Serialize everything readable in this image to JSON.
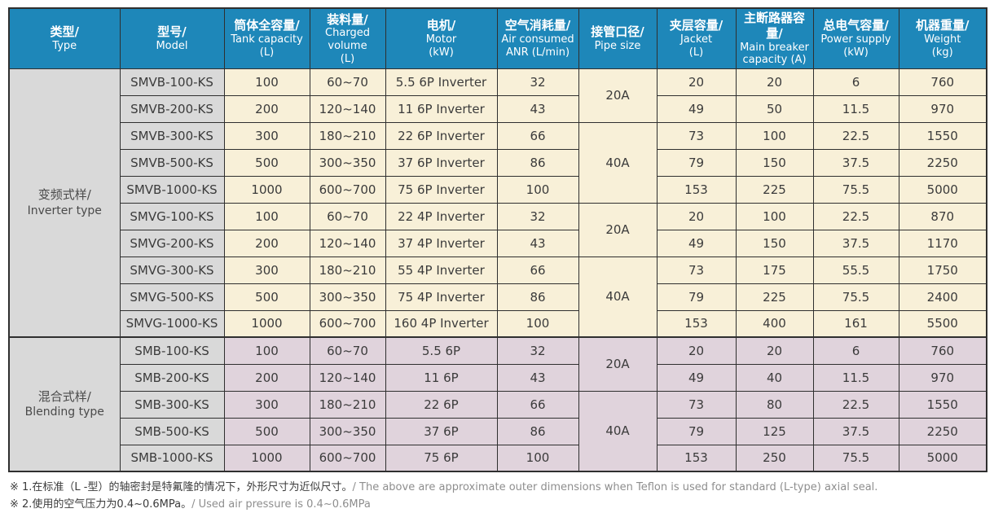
{
  "table": {
    "columns": [
      {
        "key": "type",
        "zh": "类型/",
        "en": "Type"
      },
      {
        "key": "model",
        "zh": "型号/",
        "en": "Model"
      },
      {
        "key": "tank",
        "zh": "筒体全容量/",
        "en": "Tank capacity",
        "unit": "(L)"
      },
      {
        "key": "charged",
        "zh": "装料量/",
        "en": "Charged volume",
        "unit": "(L)"
      },
      {
        "key": "motor",
        "zh": "电机/",
        "en": "Motor",
        "unit": "(kW)"
      },
      {
        "key": "air",
        "zh": "空气消耗量/",
        "en": "Air consumed",
        "unit": "ANR (L/min)"
      },
      {
        "key": "pipe",
        "zh": "接管口径/",
        "en": "Pipe size"
      },
      {
        "key": "jacket",
        "zh": "夹层容量/",
        "en": "Jacket",
        "unit": "(L)"
      },
      {
        "key": "breaker",
        "zh": "主断路器容量/",
        "en": "Main breaker",
        "unit": "capacity (A)"
      },
      {
        "key": "power",
        "zh": "总电气容量/",
        "en": "Power supply",
        "unit": "(kW)"
      },
      {
        "key": "weight",
        "zh": "机器重量/",
        "en": "Weight",
        "unit": "(kg)"
      }
    ],
    "groups": [
      {
        "type_zh": "变频式样/",
        "type_en": "Inverter type",
        "tone": "cream",
        "pipe_spans": [
          {
            "label": "20A",
            "rows": 2
          },
          {
            "label": "40A",
            "rows": 3
          },
          {
            "label": "20A",
            "rows": 2
          },
          {
            "label": "40A",
            "rows": 3
          }
        ],
        "rows": [
          {
            "model": "SMVB-100-KS",
            "tank": "100",
            "charged": "60~70",
            "motor": "5.5 6P Inverter",
            "air": "32",
            "jacket": "20",
            "breaker": "20",
            "power": "6",
            "weight": "760"
          },
          {
            "model": "SMVB-200-KS",
            "tank": "200",
            "charged": "120~140",
            "motor": "11 6P Inverter",
            "air": "43",
            "jacket": "49",
            "breaker": "50",
            "power": "11.5",
            "weight": "970"
          },
          {
            "model": "SMVB-300-KS",
            "tank": "300",
            "charged": "180~210",
            "motor": "22 6P Inverter",
            "air": "66",
            "jacket": "73",
            "breaker": "100",
            "power": "22.5",
            "weight": "1550"
          },
          {
            "model": "SMVB-500-KS",
            "tank": "500",
            "charged": "300~350",
            "motor": "37 6P Inverter",
            "air": "86",
            "jacket": "79",
            "breaker": "150",
            "power": "37.5",
            "weight": "2250"
          },
          {
            "model": "SMVB-1000-KS",
            "tank": "1000",
            "charged": "600~700",
            "motor": "75 6P Inverter",
            "air": "100",
            "jacket": "153",
            "breaker": "225",
            "power": "75.5",
            "weight": "5000"
          },
          {
            "model": "SMVG-100-KS",
            "tank": "100",
            "charged": "60~70",
            "motor": "22 4P Inverter",
            "air": "32",
            "jacket": "20",
            "breaker": "100",
            "power": "22.5",
            "weight": "870"
          },
          {
            "model": "SMVG-200-KS",
            "tank": "200",
            "charged": "120~140",
            "motor": "37 4P Inverter",
            "air": "43",
            "jacket": "49",
            "breaker": "150",
            "power": "37.5",
            "weight": "1170"
          },
          {
            "model": "SMVG-300-KS",
            "tank": "300",
            "charged": "180~210",
            "motor": "55 4P Inverter",
            "air": "66",
            "jacket": "73",
            "breaker": "175",
            "power": "55.5",
            "weight": "1750"
          },
          {
            "model": "SMVG-500-KS",
            "tank": "500",
            "charged": "300~350",
            "motor": "75 4P Inverter",
            "air": "86",
            "jacket": "79",
            "breaker": "225",
            "power": "75.5",
            "weight": "2400"
          },
          {
            "model": "SMVG-1000-KS",
            "tank": "1000",
            "charged": "600~700",
            "motor": "160 4P Inverter",
            "air": "100",
            "jacket": "153",
            "breaker": "400",
            "power": "161",
            "weight": "5500"
          }
        ]
      },
      {
        "type_zh": "混合式样/",
        "type_en": "Blending type",
        "tone": "pink",
        "pipe_spans": [
          {
            "label": "20A",
            "rows": 2
          },
          {
            "label": "40A",
            "rows": 3
          }
        ],
        "rows": [
          {
            "model": "SMB-100-KS",
            "tank": "100",
            "charged": "60~70",
            "motor": "5.5 6P",
            "air": "32",
            "jacket": "20",
            "breaker": "20",
            "power": "6",
            "weight": "760"
          },
          {
            "model": "SMB-200-KS",
            "tank": "200",
            "charged": "120~140",
            "motor": "11 6P",
            "air": "43",
            "jacket": "49",
            "breaker": "40",
            "power": "11.5",
            "weight": "970"
          },
          {
            "model": "SMB-300-KS",
            "tank": "300",
            "charged": "180~210",
            "motor": "22 6P",
            "air": "66",
            "jacket": "73",
            "breaker": "80",
            "power": "22.5",
            "weight": "1550"
          },
          {
            "model": "SMB-500-KS",
            "tank": "500",
            "charged": "300~350",
            "motor": "37 6P",
            "air": "86",
            "jacket": "79",
            "breaker": "125",
            "power": "37.5",
            "weight": "2250"
          },
          {
            "model": "SMB-1000-KS",
            "tank": "1000",
            "charged": "600~700",
            "motor": "75 6P",
            "air": "100",
            "jacket": "153",
            "breaker": "250",
            "power": "75.5",
            "weight": "5000"
          }
        ]
      }
    ]
  },
  "notes": [
    {
      "zh": "※ 1.在标准（L -型）的轴密封是特氟隆的情况下，外形尺寸为近似尺寸。",
      "en": "/ The above are approximate outer dimensions when Teflon is used for standard (L-type) axial seal."
    },
    {
      "zh": "※ 2.使用的空气压力为0.4~0.6MPa。",
      "en": "/ Used air pressure is 0.4~0.6MPa"
    }
  ],
  "colors": {
    "header_bg": "#1e87b9",
    "inverter_row_bg": "#f8f0d8",
    "blending_row_bg": "#e0d3dc",
    "type_model_bg": "#d9d9d9",
    "border": "#2f2f2f",
    "text": "#3b3b3b",
    "note_en_text": "#8e8e8e"
  }
}
